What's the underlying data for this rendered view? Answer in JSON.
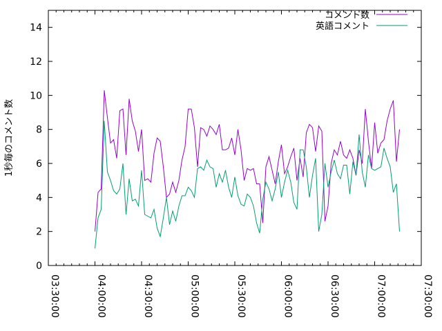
{
  "chart_data": {
    "type": "line",
    "title": "",
    "xlabel": "",
    "ylabel": "1秒毎のコメント数",
    "x_start": "04:00:00",
    "x_step_seconds": 120,
    "xlim": [
      "03:30:00",
      "07:30:00"
    ],
    "xticks": [
      "03:30:00",
      "04:00:00",
      "04:30:00",
      "05:00:00",
      "05:30:00",
      "06:00:00",
      "06:30:00",
      "07:00:00",
      "07:30:00"
    ],
    "ylim": [
      0,
      15
    ],
    "yticks": [
      "0",
      "2",
      "4",
      "6",
      "8",
      "10",
      "12",
      "14"
    ],
    "grid": false,
    "legend_position": "top-right",
    "series": [
      {
        "name": "コメント数",
        "color": "#9400d3",
        "values": [
          2.0,
          4.3,
          4.5,
          10.3,
          8.7,
          7.2,
          7.4,
          6.3,
          9.1,
          9.2,
          6.5,
          9.8,
          8.5,
          7.9,
          6.7,
          8.0,
          5.0,
          5.1,
          4.9,
          6.6,
          7.5,
          7.3,
          5.8,
          4.0,
          4.2,
          4.9,
          4.3,
          5.0,
          6.2,
          7.0,
          9.2,
          9.2,
          8.1,
          5.8,
          8.1,
          8.0,
          7.6,
          8.2,
          8.0,
          7.7,
          8.3,
          6.8,
          6.8,
          6.9,
          7.5,
          6.5,
          8.0,
          6.8,
          5.0,
          5.7,
          5.6,
          5.7,
          4.8,
          4.8,
          2.5,
          5.8,
          6.4,
          5.6,
          4.8,
          6.1,
          7.1,
          5.4,
          5.8,
          6.4,
          6.9,
          5.0,
          6.3,
          5.2,
          7.8,
          8.3,
          8.1,
          6.7,
          8.2,
          7.9,
          2.6,
          3.5,
          6.0,
          6.8,
          6.5,
          7.3,
          6.5,
          6.3,
          6.8,
          6.3,
          5.3,
          6.8,
          6.0,
          9.2,
          7.3,
          5.7,
          8.4,
          6.6,
          7.2,
          7.4,
          8.5,
          9.2,
          9.7,
          6.1,
          8.0
        ]
      },
      {
        "name": "英語コメント",
        "color": "#009e73",
        "values": [
          1.0,
          2.8,
          3.3,
          8.5,
          5.5,
          5.0,
          4.4,
          4.2,
          4.5,
          6.0,
          3.0,
          5.1,
          3.8,
          3.9,
          3.5,
          5.6,
          3.0,
          2.9,
          2.8,
          3.3,
          2.2,
          1.7,
          2.8,
          4.0,
          2.4,
          3.2,
          2.6,
          3.5,
          4.1,
          4.1,
          4.6,
          4.4,
          4.0,
          5.7,
          5.8,
          5.6,
          6.2,
          5.8,
          5.7,
          4.6,
          5.4,
          4.9,
          5.6,
          4.6,
          4.0,
          5.2,
          4.1,
          3.6,
          3.5,
          4.2,
          4.0,
          3.5,
          2.5,
          1.9,
          3.9,
          4.9,
          4.5,
          3.8,
          4.5,
          5.5,
          4.0,
          4.9,
          5.6,
          4.9,
          3.7,
          3.3,
          6.8,
          6.8,
          5.8,
          4.0,
          5.3,
          6.3,
          2.0,
          3.0,
          6.0,
          4.6,
          5.5,
          6.2,
          5.4,
          5.1,
          5.9,
          5.9,
          4.2,
          6.1,
          5.3,
          7.7,
          5.5,
          4.6,
          6.5,
          5.7,
          5.6,
          5.7,
          5.8,
          6.9,
          6.3,
          5.8,
          4.3,
          4.8,
          2.0
        ]
      }
    ]
  }
}
